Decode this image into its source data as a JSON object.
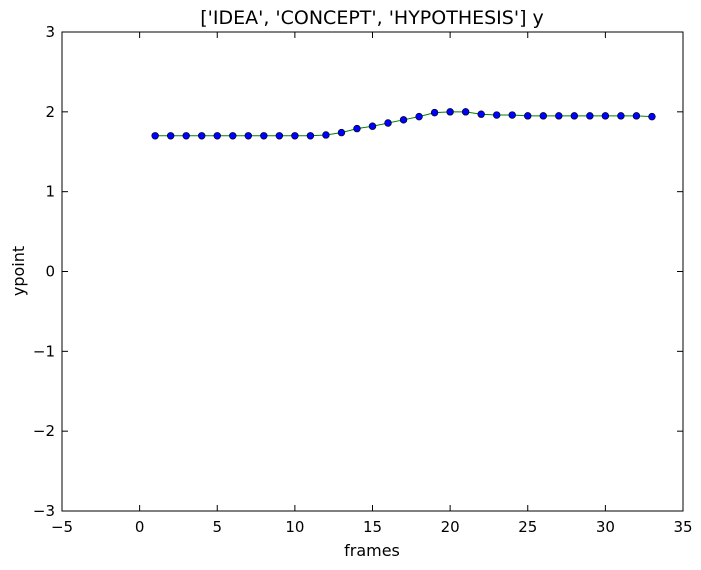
{
  "chart_data": {
    "type": "line",
    "title": "['IDEA', 'CONCEPT', 'HYPOTHESIS'] y",
    "xlabel": "frames",
    "ylabel": "ypoint",
    "xlim": [
      -5,
      35
    ],
    "ylim": [
      -3,
      3
    ],
    "xticks": [
      -5,
      0,
      5,
      10,
      15,
      20,
      25,
      30,
      35
    ],
    "yticks": [
      -3,
      -2,
      -1,
      0,
      1,
      2,
      3
    ],
    "xtick_labels": [
      "−5",
      "0",
      "5",
      "10",
      "15",
      "20",
      "25",
      "30",
      "35"
    ],
    "ytick_labels": [
      "−3",
      "−2",
      "−1",
      "0",
      "1",
      "2",
      "3"
    ],
    "grid": false,
    "line_color": "#008000",
    "marker_color": "#0000ff",
    "series": [
      {
        "x": [
          1,
          2,
          3,
          4,
          5,
          6,
          7,
          8,
          9,
          10,
          11,
          12,
          13,
          14,
          15,
          16,
          17,
          18,
          19,
          20,
          21,
          22,
          23,
          24,
          25,
          26,
          27,
          28,
          29,
          30,
          31,
          32,
          33
        ],
        "y": [
          1.7,
          1.7,
          1.7,
          1.7,
          1.7,
          1.7,
          1.7,
          1.7,
          1.7,
          1.7,
          1.7,
          1.71,
          1.74,
          1.79,
          1.82,
          1.86,
          1.9,
          1.94,
          1.99,
          2.0,
          2.0,
          1.97,
          1.96,
          1.96,
          1.95,
          1.95,
          1.95,
          1.95,
          1.95,
          1.95,
          1.95,
          1.95,
          1.94
        ]
      }
    ]
  }
}
